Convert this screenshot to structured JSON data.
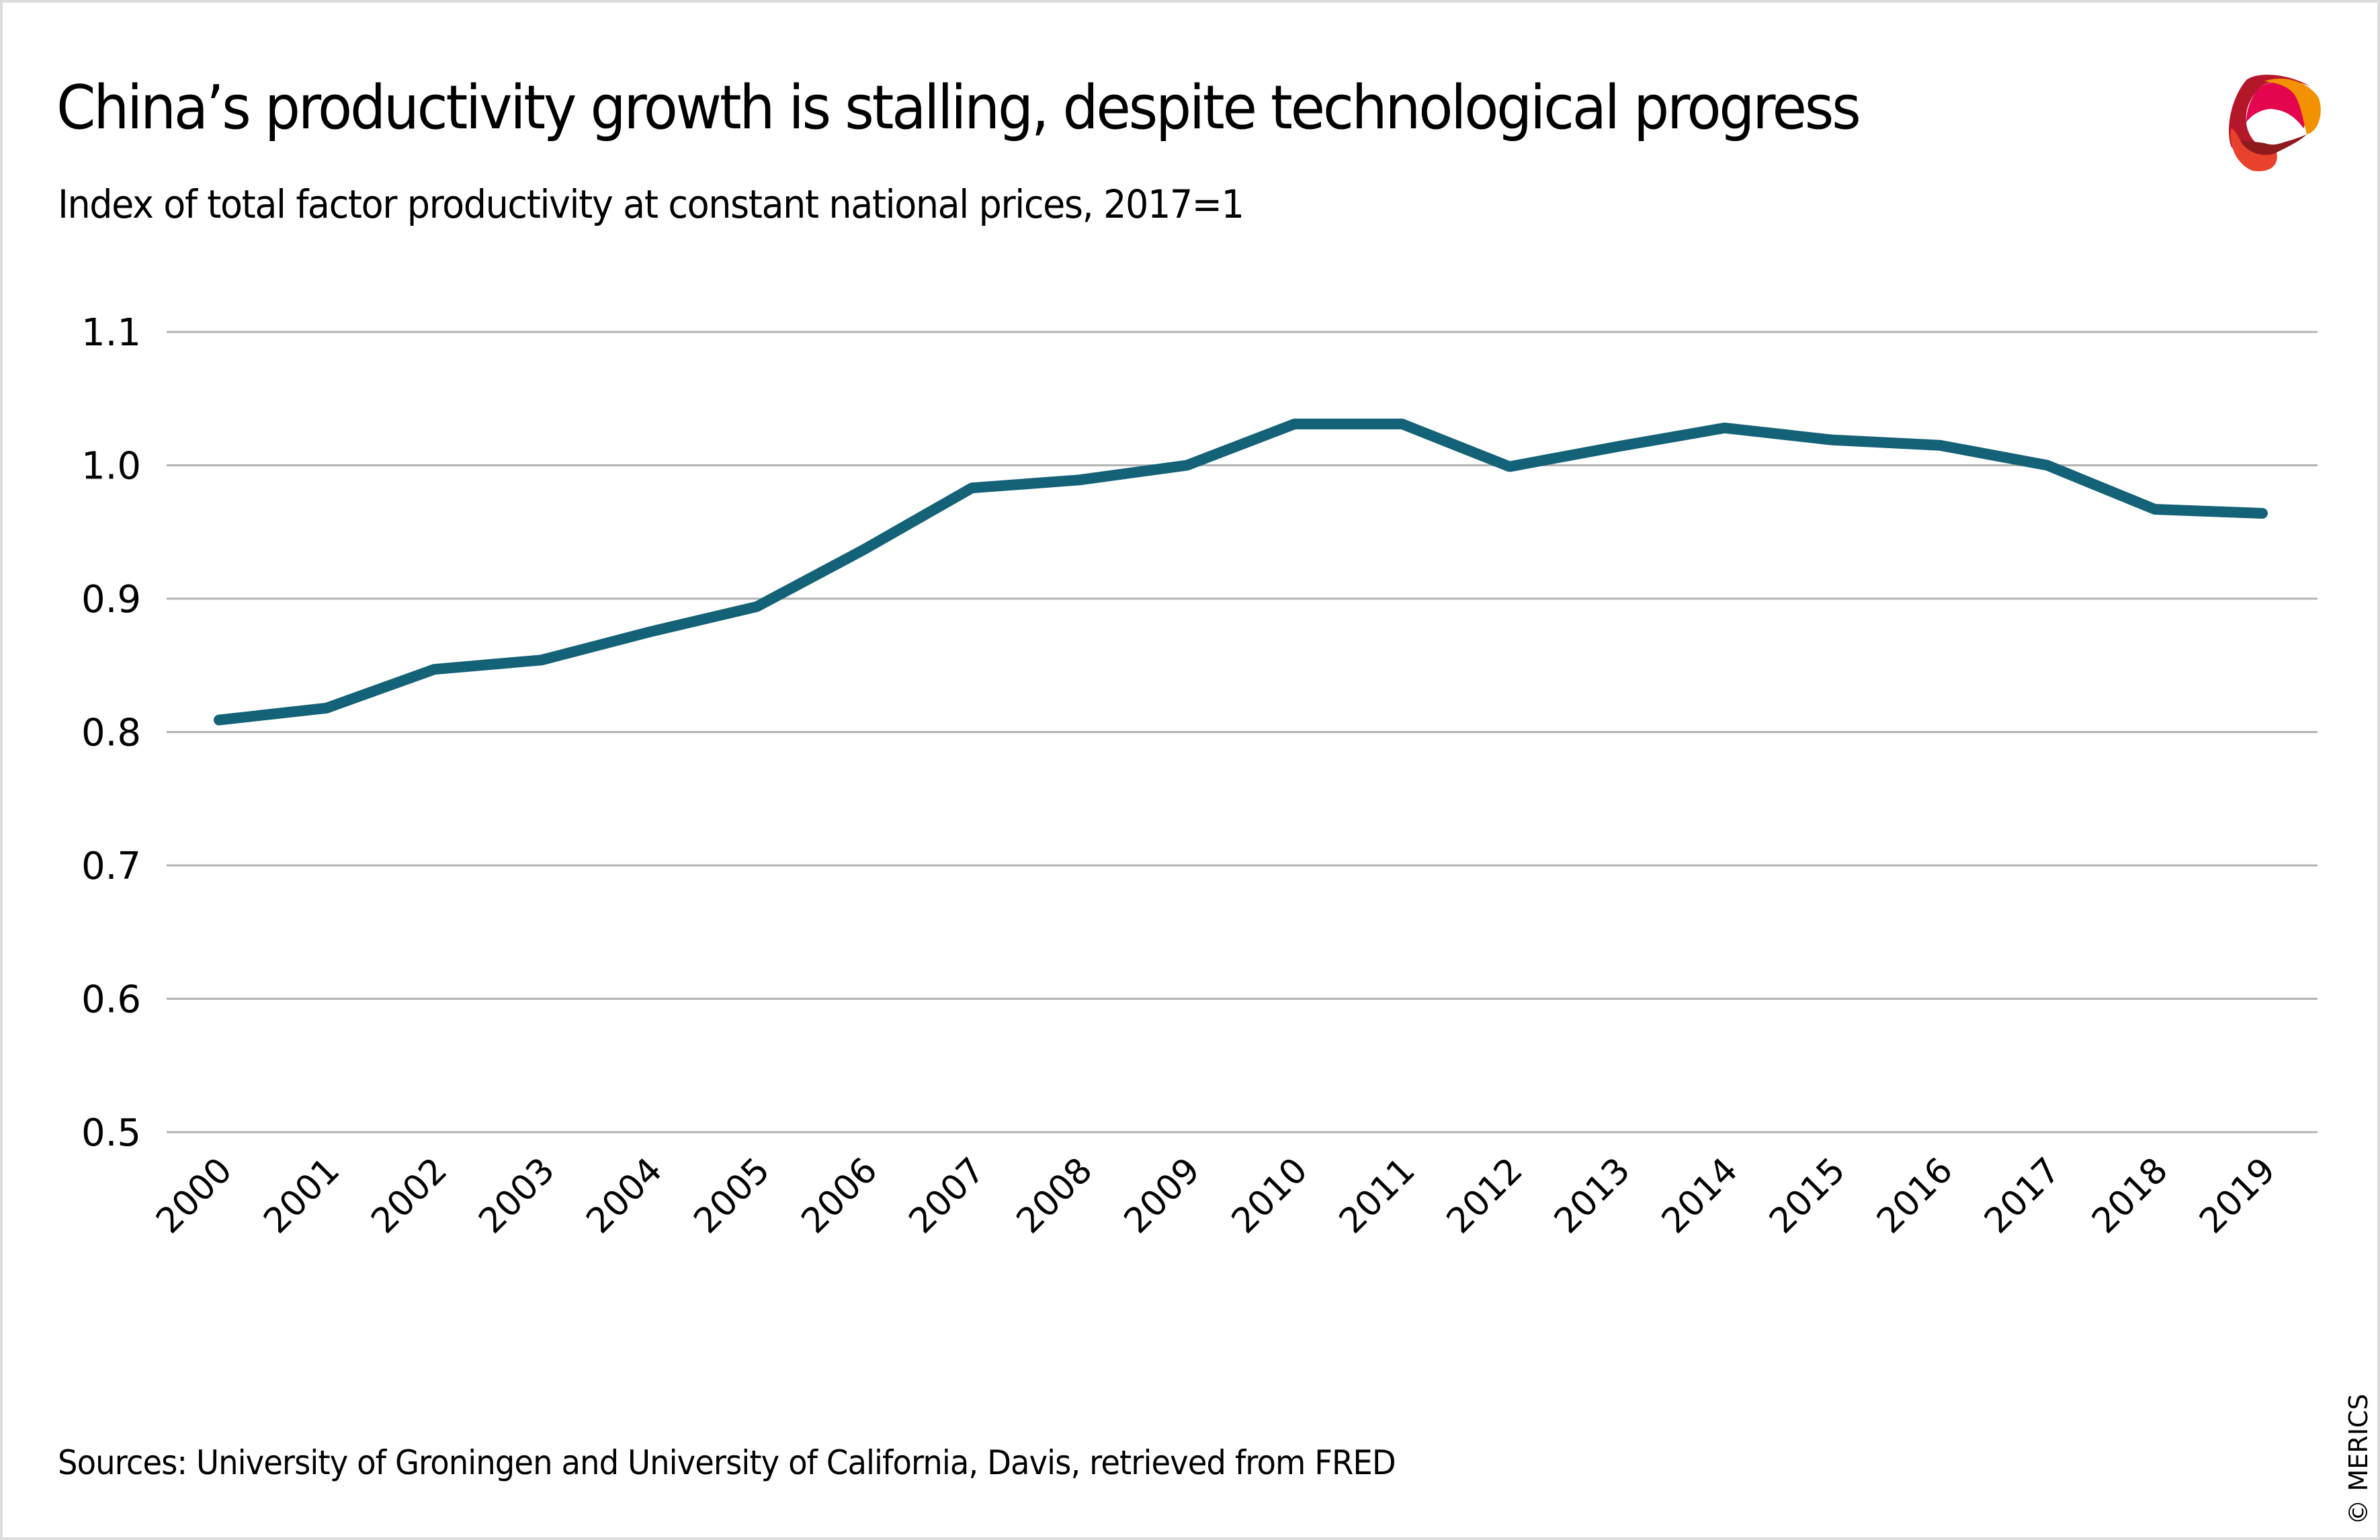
{
  "header": {
    "title": "China’s productivity growth is stalling, despite technological progress",
    "subtitle": "Index of total factor productivity at constant national prices, 2017=1",
    "logo_icon": "merics-logo-icon"
  },
  "footer": {
    "source": "Sources: University of Groningen and University of California, Davis, retrieved from FRED",
    "copyright": "© MERICS"
  },
  "colors": {
    "line": "#136277",
    "grid": "#b3b3b3",
    "frame": "#dcdcdc",
    "logo_red": "#c0182b",
    "logo_pink": "#e4054f",
    "logo_orange": "#f39200",
    "logo_darkred": "#8e1a1c",
    "logo_coral": "#e8412c"
  },
  "chart_data": {
    "type": "line",
    "title": "China’s productivity growth is stalling, despite technological progress",
    "subtitle": "Index of total factor productivity at constant national prices, 2017=1",
    "xlabel": "",
    "ylabel": "",
    "categories": [
      "2000",
      "2001",
      "2002",
      "2003",
      "2004",
      "2005",
      "2006",
      "2007",
      "2008",
      "2009",
      "2010",
      "2011",
      "2012",
      "2013",
      "2014",
      "2015",
      "2016",
      "2017",
      "2018",
      "2019"
    ],
    "series": [
      {
        "name": "Total factor productivity index (2017=1)",
        "values": [
          0.809,
          0.818,
          0.847,
          0.854,
          0.875,
          0.894,
          0.937,
          0.983,
          0.989,
          1.0,
          1.031,
          1.031,
          0.999,
          1.014,
          1.028,
          1.019,
          1.015,
          1.0,
          0.967,
          0.964
        ]
      }
    ],
    "ylim": [
      0.5,
      1.1
    ],
    "yticks": [
      1.1,
      1.0,
      0.9,
      0.8,
      0.7,
      0.6,
      0.5
    ],
    "ytick_labels": [
      "1.1",
      "1.0",
      "0.9",
      "0.8",
      "0.7",
      "0.6",
      "0.5"
    ],
    "grid": true,
    "legend": "none",
    "x_tick_rotation": "-45 degrees",
    "source": "Sources: University of Groningen and University of California, Davis, retrieved from FRED"
  }
}
